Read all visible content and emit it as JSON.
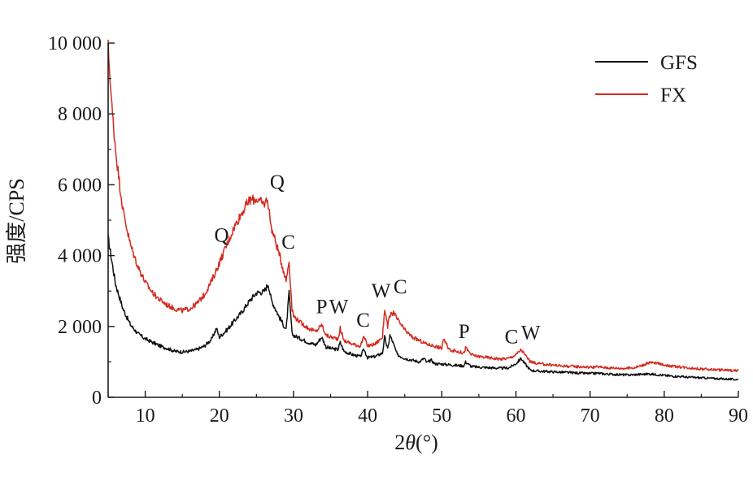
{
  "chart_data": {
    "type": "line",
    "xlabel_prefix": "2",
    "xlabel_var": "θ",
    "xlabel_suffix": "(°)",
    "ylabel": "强度/CPS",
    "xlim": [
      5,
      90
    ],
    "ylim": [
      0,
      10000
    ],
    "x_ticks": [
      10,
      20,
      30,
      40,
      50,
      60,
      70,
      80,
      90
    ],
    "y_ticks": [
      {
        "value": 0,
        "label": "0"
      },
      {
        "value": 2000,
        "label": "2 000"
      },
      {
        "value": 4000,
        "label": "4 000"
      },
      {
        "value": 6000,
        "label": "6 000"
      },
      {
        "value": 8000,
        "label": "8 000"
      },
      {
        "value": 10000,
        "label": "10 000"
      }
    ],
    "legend_position": "top-right",
    "series": [
      {
        "name": "GFS",
        "color": "#111111",
        "x": [
          5,
          6,
          7,
          8,
          9,
          10,
          11,
          12,
          13,
          14,
          15,
          16,
          17,
          18,
          19,
          19.6,
          20,
          21,
          22,
          23,
          24,
          25,
          26,
          26.6,
          27,
          28,
          29,
          29.4,
          29.8,
          30,
          31,
          32,
          33,
          33.8,
          34.4,
          35,
          36,
          36.3,
          36.8,
          38,
          39,
          39.5,
          40,
          41,
          42,
          42.3,
          42.7,
          43,
          43.5,
          44,
          45,
          46,
          47,
          47.6,
          48,
          48.6,
          49,
          50,
          51,
          52,
          53,
          53.2,
          54,
          55,
          56,
          57,
          58,
          59,
          60,
          60.7,
          61.2,
          62,
          63,
          64,
          65,
          66,
          67,
          68,
          69,
          70,
          71,
          72,
          73,
          74,
          75,
          76,
          77,
          78,
          79,
          80,
          81,
          82,
          83,
          84,
          85,
          86,
          87,
          88,
          89,
          90
        ],
        "y": [
          4500,
          3200,
          2500,
          2050,
          1800,
          1650,
          1550,
          1450,
          1380,
          1300,
          1280,
          1300,
          1350,
          1450,
          1650,
          1950,
          1700,
          1900,
          2150,
          2400,
          2700,
          2950,
          2980,
          3200,
          2750,
          2300,
          1900,
          2950,
          1800,
          1750,
          1650,
          1550,
          1480,
          1700,
          1420,
          1380,
          1350,
          1550,
          1300,
          1200,
          1150,
          1350,
          1120,
          1150,
          1250,
          1700,
          1350,
          1750,
          1500,
          1200,
          1100,
          1050,
          1000,
          1100,
          980,
          1050,
          950,
          940,
          920,
          900,
          890,
          1000,
          870,
          850,
          840,
          830,
          820,
          830,
          950,
          1100,
          950,
          760,
          740,
          730,
          720,
          710,
          700,
          690,
          680,
          670,
          680,
          660,
          650,
          640,
          630,
          640,
          650,
          660,
          640,
          620,
          600,
          590,
          570,
          560,
          550,
          540,
          530,
          520,
          510,
          500
        ],
        "peaks": []
      },
      {
        "name": "FX",
        "color": "#d42a1e",
        "x": [
          5,
          5.5,
          6,
          6.5,
          7,
          8,
          9,
          10,
          11,
          12,
          13,
          14,
          15,
          16,
          17,
          18,
          19,
          20,
          21,
          22,
          23,
          24,
          25,
          26,
          26.5,
          27,
          28,
          29,
          29.4,
          29.8,
          30,
          31,
          32,
          33,
          33.8,
          34.4,
          35,
          36,
          36.3,
          36.8,
          38,
          39,
          39.5,
          40,
          41,
          42,
          42.3,
          42.7,
          43,
          43.5,
          44,
          45,
          46,
          47,
          48,
          49,
          50,
          50.2,
          51,
          52,
          53,
          53.2,
          54,
          55,
          56,
          57,
          58,
          59,
          60,
          60.7,
          61.2,
          62,
          63,
          64,
          65,
          66,
          67,
          68,
          69,
          70,
          71,
          72,
          73,
          74,
          75,
          76,
          77,
          78,
          79,
          80,
          81,
          82,
          83,
          84,
          85,
          86,
          87,
          88,
          89,
          90
        ],
        "y": [
          9900,
          8200,
          7000,
          6100,
          5300,
          4300,
          3700,
          3250,
          2950,
          2750,
          2600,
          2500,
          2450,
          2500,
          2650,
          2900,
          3300,
          3800,
          4300,
          4800,
          5200,
          5550,
          5600,
          5450,
          5600,
          4800,
          4100,
          3300,
          3850,
          2500,
          2300,
          2100,
          1950,
          1850,
          2050,
          1750,
          1700,
          1650,
          1950,
          1600,
          1500,
          1450,
          1700,
          1450,
          1500,
          1700,
          2500,
          2000,
          2300,
          2400,
          2200,
          1900,
          1700,
          1600,
          1500,
          1450,
          1380,
          1650,
          1350,
          1300,
          1250,
          1400,
          1200,
          1150,
          1130,
          1100,
          1080,
          1100,
          1200,
          1350,
          1200,
          1000,
          950,
          930,
          910,
          890,
          880,
          870,
          860,
          850,
          860,
          840,
          830,
          820,
          820,
          840,
          900,
          980,
          960,
          920,
          880,
          860,
          840,
          820,
          800,
          790,
          780,
          770,
          760,
          750
        ],
        "peaks": []
      }
    ],
    "annotations": [
      {
        "text": "Q",
        "x": 20.3,
        "y": 4390
      },
      {
        "text": "Q",
        "x": 27.8,
        "y": 5900
      },
      {
        "text": "C",
        "x": 29.3,
        "y": 4200
      },
      {
        "text": "P",
        "x": 33.8,
        "y": 2370
      },
      {
        "text": "W",
        "x": 36.1,
        "y": 2370
      },
      {
        "text": "C",
        "x": 39.4,
        "y": 1990
      },
      {
        "text": "W",
        "x": 41.8,
        "y": 2820
      },
      {
        "text": "C",
        "x": 44.4,
        "y": 2940
      },
      {
        "text": "P",
        "x": 53.0,
        "y": 1670
      },
      {
        "text": "C",
        "x": 59.4,
        "y": 1530
      },
      {
        "text": "W",
        "x": 62.0,
        "y": 1640
      }
    ]
  }
}
